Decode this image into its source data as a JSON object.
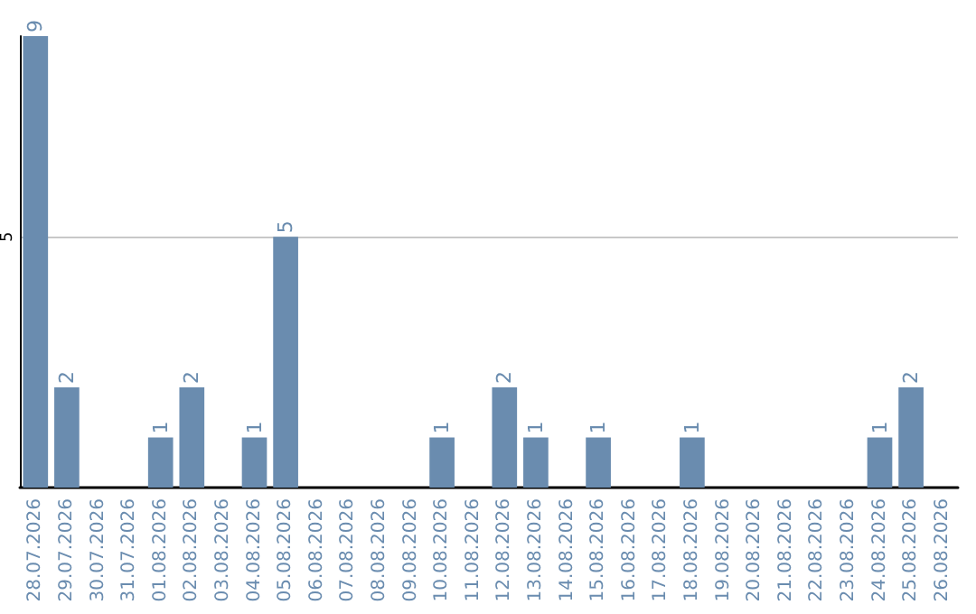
{
  "chart_data": {
    "type": "bar",
    "categories": [
      "28.07.2026",
      "29.07.2026",
      "30.07.2026",
      "31.07.2026",
      "01.08.2026",
      "02.08.2026",
      "03.08.2026",
      "04.08.2026",
      "05.08.2026",
      "06.08.2026",
      "07.08.2026",
      "08.08.2026",
      "09.08.2026",
      "10.08.2026",
      "11.08.2026",
      "12.08.2026",
      "13.08.2026",
      "14.08.2026",
      "15.08.2026",
      "16.08.2026",
      "17.08.2026",
      "18.08.2026",
      "19.08.2026",
      "20.08.2026",
      "21.08.2026",
      "22.08.2026",
      "23.08.2026",
      "24.08.2026",
      "25.08.2026",
      "26.08.2026"
    ],
    "values": [
      9,
      2,
      0,
      0,
      1,
      2,
      0,
      1,
      5,
      0,
      0,
      0,
      0,
      1,
      0,
      2,
      1,
      0,
      1,
      0,
      0,
      1,
      0,
      0,
      0,
      0,
      0,
      1,
      2,
      0
    ],
    "value_labels": [
      "9",
      "2",
      null,
      null,
      "1",
      "2",
      null,
      "1",
      "5",
      null,
      null,
      null,
      null,
      "1",
      null,
      "2",
      "1",
      null,
      "1",
      null,
      null,
      "1",
      null,
      null,
      null,
      null,
      null,
      "1",
      "2",
      null
    ],
    "color": "#6a8caf",
    "ylim": [
      0,
      9
    ],
    "yticks": [
      5
    ],
    "grid": "y"
  }
}
